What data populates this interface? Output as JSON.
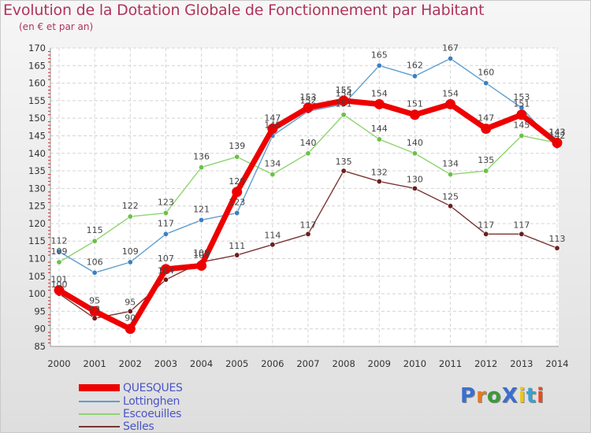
{
  "title": "Evolution de la Dotation Globale de Fonctionnement par Habitant",
  "subtitle": "(en € et par an)",
  "logo": {
    "text": "ProXiti",
    "colors": [
      "#3a6fd0",
      "#e8791c",
      "#3a9a3a",
      "#3a6fd0",
      "#e8c81c",
      "#3aa0d0",
      "#e84c1c"
    ]
  },
  "chart_data": {
    "type": "line",
    "title": "Evolution de la Dotation Globale de Fonctionnement par Habitant",
    "ylabel": "(en € et par an)",
    "x": [
      "2000",
      "2001",
      "2002",
      "2003",
      "2004",
      "2005",
      "2006",
      "2007",
      "2008",
      "2009",
      "2010",
      "2011",
      "2012",
      "2013",
      "2014"
    ],
    "ylim": [
      85,
      170
    ],
    "yticks": [
      85,
      90,
      95,
      100,
      105,
      110,
      115,
      120,
      125,
      130,
      135,
      140,
      145,
      150,
      155,
      160,
      165,
      170
    ],
    "grid": true,
    "series": [
      {
        "name": "Selles",
        "color": "#7a3535",
        "dot": "#6b1f1f",
        "values": [
          100,
          93,
          95,
          104,
          109,
          111,
          114,
          117,
          135,
          132,
          130,
          125,
          117,
          117,
          113
        ],
        "labels": [
          "100",
          "93",
          "95",
          "104",
          "109",
          "111",
          "114",
          "117",
          "135",
          "132",
          "130",
          "125",
          "117",
          "117",
          "113"
        ]
      },
      {
        "name": "Escoeuilles",
        "color": "#8fd470",
        "dot": "#6cc04a",
        "values": [
          109,
          115,
          122,
          123,
          136,
          139,
          134,
          140,
          151,
          144,
          140,
          134,
          135,
          145,
          143
        ],
        "labels": [
          "109",
          "115",
          "122",
          "123",
          "136",
          "139",
          "134",
          "140",
          "151",
          "144",
          "140",
          "134",
          "135",
          "145",
          "143"
        ]
      },
      {
        "name": "Lottinghen",
        "color": "#5d9fd0",
        "dot": "#3c7fc0",
        "values": [
          112,
          106,
          109,
          117,
          121,
          123,
          145,
          152,
          154,
          165,
          162,
          167,
          160,
          153,
          142
        ],
        "labels": [
          "112",
          "106",
          "109",
          "117",
          "121",
          "123",
          "145",
          "152",
          "154",
          "165",
          "162",
          "167",
          "160",
          "153",
          "142"
        ]
      },
      {
        "name": "QUESQUES",
        "color": "#ee0000",
        "dot": "#ee0000",
        "values": [
          101,
          95,
          90,
          107,
          108,
          129,
          147,
          153,
          155,
          154,
          151,
          154,
          147,
          151,
          143
        ],
        "labels": [
          "101",
          "95",
          "90",
          "107",
          "108",
          "129",
          "147",
          "153",
          "155",
          "154",
          "151",
          "154",
          "147",
          "151",
          "143"
        ]
      }
    ],
    "legend": {
      "placement": "bottom-left",
      "order": [
        "QUESQUES",
        "Lottinghen",
        "Escoeuilles",
        "Selles"
      ]
    }
  }
}
